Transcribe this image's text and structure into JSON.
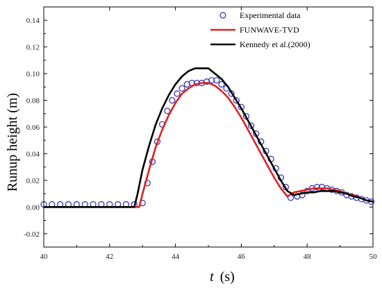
{
  "chart_data": {
    "type": "line",
    "xlabel_var": "t",
    "xlabel_unit": "(s)",
    "ylabel": "Runup height (m)",
    "xlim": [
      40,
      50
    ],
    "ylim": [
      -0.03,
      0.15
    ],
    "xticks": [
      40,
      42,
      44,
      46,
      48,
      50
    ],
    "yticks": [
      -0.02,
      0.0,
      0.02,
      0.04,
      0.06,
      0.08,
      0.1,
      0.12,
      0.14
    ],
    "ytick_labels": [
      "-0.02",
      "0.00",
      "0.02",
      "0.04",
      "0.06",
      "0.08",
      "0.10",
      "0.12",
      "0.14"
    ],
    "xtick_labels": [
      "40",
      "42",
      "44",
      "46",
      "48",
      "50"
    ],
    "grid": false,
    "legend_position": "top-right",
    "series": [
      {
        "name": "Experimental data",
        "style": "markers",
        "color": "#2b2bb5",
        "x": [
          40.0,
          40.25,
          40.5,
          40.75,
          41.0,
          41.25,
          41.5,
          41.75,
          42.0,
          42.25,
          42.5,
          42.75,
          43.0,
          43.15,
          43.3,
          43.45,
          43.6,
          43.75,
          43.9,
          44.05,
          44.2,
          44.35,
          44.5,
          44.65,
          44.8,
          44.95,
          45.1,
          45.25,
          45.4,
          45.55,
          45.7,
          45.85,
          46.0,
          46.15,
          46.3,
          46.45,
          46.6,
          46.75,
          46.9,
          47.05,
          47.2,
          47.35,
          47.5,
          47.7,
          47.85,
          48.0,
          48.15,
          48.3,
          48.45,
          48.6,
          48.75,
          48.9,
          49.05,
          49.2,
          49.35,
          49.5,
          49.65,
          49.8,
          49.95
        ],
        "y": [
          0.002,
          0.002,
          0.002,
          0.002,
          0.002,
          0.002,
          0.002,
          0.002,
          0.002,
          0.002,
          0.002,
          0.002,
          0.003,
          0.018,
          0.034,
          0.049,
          0.062,
          0.072,
          0.08,
          0.085,
          0.089,
          0.092,
          0.093,
          0.093,
          0.093,
          0.094,
          0.095,
          0.095,
          0.092,
          0.089,
          0.085,
          0.08,
          0.075,
          0.068,
          0.061,
          0.055,
          0.049,
          0.042,
          0.036,
          0.029,
          0.022,
          0.015,
          0.007,
          0.008,
          0.009,
          0.012,
          0.014,
          0.015,
          0.015,
          0.014,
          0.013,
          0.012,
          0.011,
          0.009,
          0.008,
          0.007,
          0.006,
          0.005,
          0.004
        ]
      },
      {
        "name": "FUNWAVE-TVD",
        "style": "line",
        "color": "#e02020",
        "x": [
          40.0,
          42.9,
          43.0,
          43.2,
          43.4,
          43.6,
          43.8,
          44.0,
          44.2,
          44.4,
          44.6,
          44.8,
          45.0,
          45.2,
          45.4,
          45.6,
          45.8,
          46.0,
          46.2,
          46.4,
          46.6,
          46.8,
          47.0,
          47.2,
          47.4,
          47.6,
          47.8,
          48.0,
          48.2,
          48.4,
          48.6,
          48.8,
          49.0,
          49.2,
          49.4,
          49.6,
          49.8,
          50.0
        ],
        "y": [
          0.0,
          0.0,
          0.01,
          0.028,
          0.045,
          0.058,
          0.069,
          0.078,
          0.085,
          0.089,
          0.092,
          0.093,
          0.093,
          0.091,
          0.087,
          0.082,
          0.075,
          0.067,
          0.058,
          0.049,
          0.04,
          0.031,
          0.022,
          0.014,
          0.008,
          0.011,
          0.012,
          0.013,
          0.014,
          0.014,
          0.014,
          0.013,
          0.012,
          0.01,
          0.009,
          0.007,
          0.005,
          0.004
        ]
      },
      {
        "name": "Kennedy et al.(2000)",
        "style": "line",
        "color": "#000000",
        "x": [
          40.0,
          42.75,
          42.85,
          43.0,
          43.2,
          43.4,
          43.6,
          43.8,
          44.0,
          44.2,
          44.4,
          44.6,
          44.8,
          45.0,
          45.2,
          45.4,
          45.6,
          45.8,
          46.0,
          46.2,
          46.4,
          46.6,
          46.8,
          47.0,
          47.2,
          47.4,
          47.6,
          47.8,
          48.0,
          48.2,
          48.4,
          48.6,
          48.8,
          49.0,
          49.2,
          49.4,
          49.6,
          49.8,
          50.0
        ],
        "y": [
          0.0,
          0.0,
          0.01,
          0.028,
          0.046,
          0.062,
          0.074,
          0.084,
          0.092,
          0.098,
          0.102,
          0.104,
          0.104,
          0.104,
          0.1,
          0.096,
          0.09,
          0.082,
          0.074,
          0.065,
          0.056,
          0.047,
          0.038,
          0.029,
          0.02,
          0.012,
          0.009,
          0.01,
          0.011,
          0.011,
          0.012,
          0.012,
          0.012,
          0.011,
          0.01,
          0.008,
          0.007,
          0.005,
          0.004
        ]
      }
    ]
  }
}
